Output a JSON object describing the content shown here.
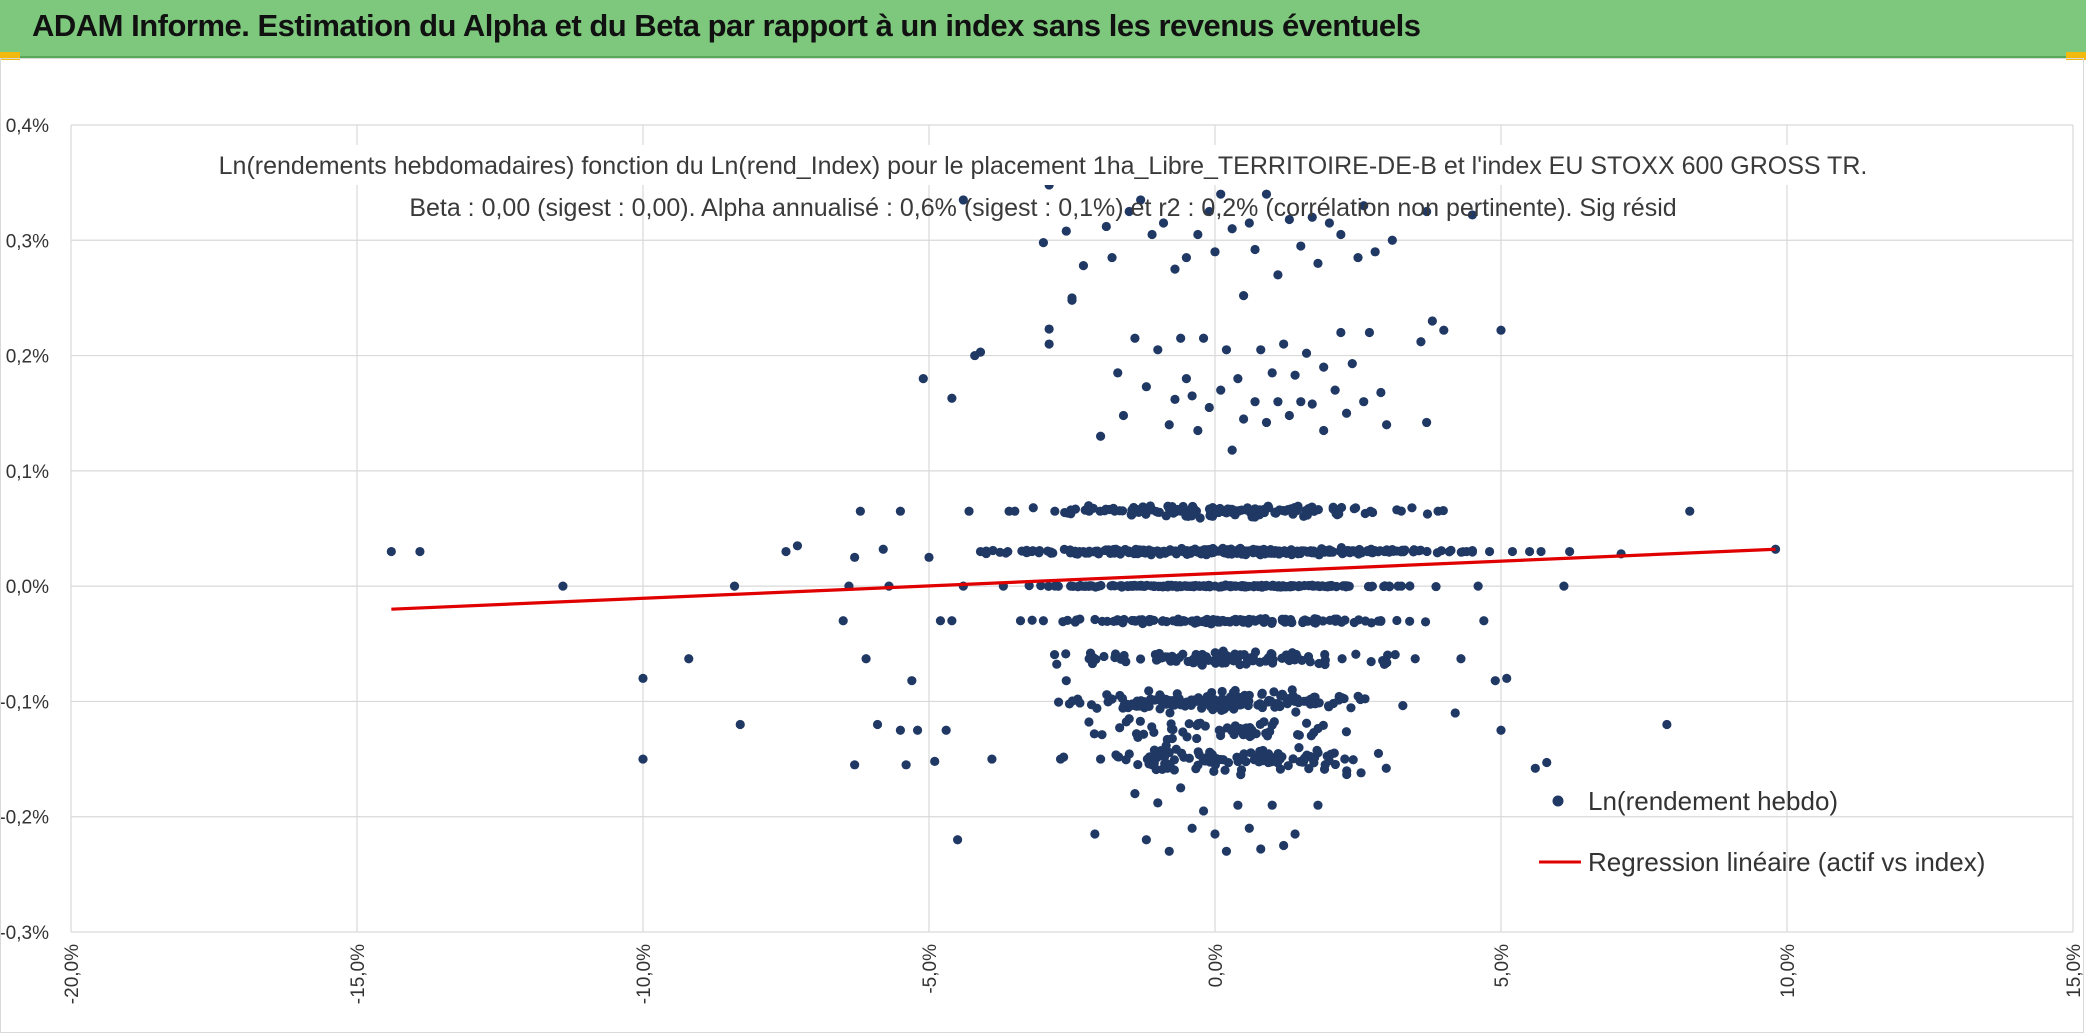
{
  "header": {
    "title": "ADAM Informe. Estimation du Alpha et du Beta par rapport à un index sans les revenus éventuels"
  },
  "colors": {
    "banner": "#7dc87d",
    "points": "#203864",
    "regression": "#e00000",
    "grid": "#d9d9d9"
  },
  "chart_data": {
    "type": "scatter",
    "title": "Ln(rendements hebdomadaires) fonction du Ln(rend_Index) pour le placement 1ha_Libre_TERRITOIRE-DE-B et l'index EU STOXX 600 GROSS TR.",
    "subtitle": "Beta : 0,00 (sigest : 0,00). Alpha annualisé : 0,6% (sigest : 0,1%) et r2 : 0,2% (corrélation non pertinente). Sig résid",
    "xlabel": "",
    "ylabel": "",
    "xlim": [
      -0.2,
      0.15
    ],
    "ylim": [
      -0.003,
      0.004
    ],
    "x_ticks": [
      {
        "value": -0.2,
        "label": "-20,0%"
      },
      {
        "value": -0.15,
        "label": "-15,0%"
      },
      {
        "value": -0.1,
        "label": "-10,0%"
      },
      {
        "value": -0.05,
        "label": "-5,0%"
      },
      {
        "value": 0.0,
        "label": "0,0%"
      },
      {
        "value": 0.05,
        "label": "5,0%"
      },
      {
        "value": 0.1,
        "label": "10,0%"
      },
      {
        "value": 0.15,
        "label": "15,0%"
      }
    ],
    "y_ticks": [
      {
        "value": 0.004,
        "label": "0,4%"
      },
      {
        "value": 0.003,
        "label": "0,3%"
      },
      {
        "value": 0.002,
        "label": "0,2%"
      },
      {
        "value": 0.001,
        "label": "0,1%"
      },
      {
        "value": 0.0,
        "label": "0,0%"
      },
      {
        "value": -0.001,
        "label": "-0,1%"
      },
      {
        "value": -0.002,
        "label": "-0,2%"
      },
      {
        "value": -0.003,
        "label": "-0,3%"
      }
    ],
    "grid": true,
    "legend_position": "bottom-right",
    "series": [
      {
        "name": "Ln(rendement hebdo)",
        "kind": "scatter",
        "points": [
          [
            -0.144,
            0.0003
          ],
          [
            -0.139,
            0.0003
          ],
          [
            -0.114,
            0.0
          ],
          [
            -0.1,
            -0.0008
          ],
          [
            -0.1,
            -0.0015
          ],
          [
            -0.092,
            -0.00063
          ],
          [
            -0.084,
            0.0
          ],
          [
            -0.083,
            -0.0012
          ],
          [
            -0.075,
            0.0003
          ],
          [
            -0.073,
            0.00035
          ],
          [
            -0.065,
            -0.0003
          ],
          [
            -0.064,
            0.0
          ],
          [
            -0.063,
            0.00025
          ],
          [
            -0.063,
            -0.00155
          ],
          [
            -0.062,
            0.00065
          ],
          [
            -0.061,
            -0.00063
          ],
          [
            -0.059,
            -0.0012
          ],
          [
            -0.058,
            0.00032
          ],
          [
            -0.057,
            0.0
          ],
          [
            -0.055,
            0.00065
          ],
          [
            -0.055,
            -0.00125
          ],
          [
            -0.054,
            -0.00155
          ],
          [
            -0.053,
            -0.00082
          ],
          [
            -0.052,
            -0.00125
          ],
          [
            -0.051,
            0.0018
          ],
          [
            -0.05,
            0.00025
          ],
          [
            -0.049,
            -0.00152
          ],
          [
            -0.047,
            -0.00125
          ],
          [
            -0.046,
            -0.0003
          ],
          [
            -0.045,
            -0.0022
          ],
          [
            -0.044,
            0.0
          ],
          [
            -0.048,
            -0.0003
          ],
          [
            -0.043,
            0.00065
          ],
          [
            -0.04,
            0.0003
          ],
          [
            -0.037,
            0.0
          ],
          [
            -0.035,
            0.00065
          ],
          [
            -0.032,
            0.0003
          ],
          [
            -0.03,
            -0.0003
          ],
          [
            -0.044,
            0.00335
          ],
          [
            -0.046,
            0.00163
          ],
          [
            -0.042,
            0.002
          ],
          [
            -0.041,
            0.00203
          ],
          [
            -0.041,
            0.0003
          ],
          [
            -0.039,
            -0.0015
          ],
          [
            -0.036,
            0.00065
          ],
          [
            -0.034,
            -0.0003
          ],
          [
            -0.031,
            0.0003
          ],
          [
            -0.03,
            0.00298
          ],
          [
            -0.029,
            0.00348
          ],
          [
            -0.029,
            0.00223
          ],
          [
            -0.029,
            0.0021
          ],
          [
            -0.028,
            0.00065
          ],
          [
            -0.027,
            -0.0015
          ],
          [
            -0.026,
            0.00308
          ],
          [
            -0.026,
            -0.00082
          ],
          [
            -0.025,
            0.0025
          ],
          [
            -0.025,
            0.00248
          ],
          [
            -0.024,
            -0.00098
          ],
          [
            -0.023,
            0.0003
          ],
          [
            -0.023,
            0.00278
          ],
          [
            -0.022,
            0.00065
          ],
          [
            -0.022,
            -0.00063
          ],
          [
            -0.021,
            -0.00215
          ],
          [
            -0.02,
            0.0013
          ],
          [
            -0.02,
            -0.0015
          ],
          [
            -0.019,
            0.00312
          ],
          [
            -0.018,
            0.00285
          ],
          [
            -0.018,
            -0.00098
          ],
          [
            -0.017,
            0.00185
          ],
          [
            -0.016,
            0.00148
          ],
          [
            -0.016,
            -0.0003
          ],
          [
            -0.015,
            0.00325
          ],
          [
            -0.015,
            -0.00115
          ],
          [
            -0.014,
            0.00215
          ],
          [
            -0.014,
            -0.0018
          ],
          [
            -0.013,
            0.00335
          ],
          [
            -0.013,
            0.0
          ],
          [
            -0.012,
            0.00173
          ],
          [
            -0.012,
            -0.0022
          ],
          [
            -0.011,
            0.00305
          ],
          [
            -0.011,
            -0.00155
          ],
          [
            -0.01,
            0.00205
          ],
          [
            -0.01,
            -0.00188
          ],
          [
            -0.009,
            0.00315
          ],
          [
            -0.009,
            -0.00102
          ],
          [
            -0.008,
            0.0014
          ],
          [
            -0.008,
            -0.0023
          ],
          [
            -0.007,
            0.00275
          ],
          [
            -0.007,
            0.00162
          ],
          [
            -0.006,
            0.00215
          ],
          [
            -0.006,
            -0.00175
          ],
          [
            -0.005,
            0.00285
          ],
          [
            -0.005,
            0.0018
          ],
          [
            -0.004,
            0.00165
          ],
          [
            -0.004,
            -0.0021
          ],
          [
            -0.003,
            0.00305
          ],
          [
            -0.003,
            0.00135
          ],
          [
            -0.002,
            0.00215
          ],
          [
            -0.002,
            -0.00195
          ],
          [
            -0.001,
            0.00325
          ],
          [
            -0.001,
            0.00155
          ],
          [
            0.0,
            0.0029
          ],
          [
            0.0,
            -0.00215
          ],
          [
            0.001,
            0.0034
          ],
          [
            0.001,
            0.0017
          ],
          [
            0.002,
            0.00205
          ],
          [
            0.002,
            -0.0023
          ],
          [
            0.003,
            0.0031
          ],
          [
            0.003,
            0.00118
          ],
          [
            0.004,
            0.0018
          ],
          [
            0.004,
            -0.0019
          ],
          [
            0.005,
            0.00252
          ],
          [
            0.005,
            0.00145
          ],
          [
            0.006,
            0.00315
          ],
          [
            0.006,
            -0.0021
          ],
          [
            0.007,
            0.00292
          ],
          [
            0.007,
            0.0016
          ],
          [
            0.008,
            0.00205
          ],
          [
            0.008,
            -0.00228
          ],
          [
            0.009,
            0.0034
          ],
          [
            0.009,
            0.00142
          ],
          [
            0.01,
            0.00185
          ],
          [
            0.01,
            -0.0019
          ],
          [
            0.011,
            0.0027
          ],
          [
            0.011,
            0.0016
          ],
          [
            0.012,
            0.0021
          ],
          [
            0.012,
            -0.00225
          ],
          [
            0.013,
            0.00318
          ],
          [
            0.013,
            0.00148
          ],
          [
            0.014,
            0.00183
          ],
          [
            0.014,
            -0.00215
          ],
          [
            0.015,
            0.00295
          ],
          [
            0.015,
            0.0016
          ],
          [
            0.016,
            0.00202
          ],
          [
            0.017,
            0.0032
          ],
          [
            0.017,
            0.00158
          ],
          [
            0.018,
            0.0028
          ],
          [
            0.018,
            -0.0019
          ],
          [
            0.019,
            0.0019
          ],
          [
            0.019,
            0.00135
          ],
          [
            0.02,
            0.00315
          ],
          [
            0.021,
            0.0017
          ],
          [
            0.022,
            0.0022
          ],
          [
            0.022,
            0.00305
          ],
          [
            0.023,
            0.0015
          ],
          [
            0.024,
            0.00193
          ],
          [
            0.025,
            0.00285
          ],
          [
            0.026,
            0.0033
          ],
          [
            0.026,
            0.0016
          ],
          [
            0.027,
            0.0022
          ],
          [
            0.028,
            0.0029
          ],
          [
            0.029,
            0.00168
          ],
          [
            0.03,
            0.0014
          ],
          [
            0.031,
            0.003
          ],
          [
            0.032,
            0.0
          ],
          [
            0.033,
            0.0003
          ],
          [
            0.035,
            -0.00063
          ],
          [
            0.036,
            0.00212
          ],
          [
            0.037,
            0.00325
          ],
          [
            0.037,
            0.00142
          ],
          [
            0.038,
            0.0023
          ],
          [
            0.039,
            0.00065
          ],
          [
            0.04,
            0.00222
          ],
          [
            0.041,
            0.0003
          ],
          [
            0.042,
            -0.0011
          ],
          [
            0.043,
            -0.00063
          ],
          [
            0.044,
            0.0003
          ],
          [
            0.045,
            0.00322
          ],
          [
            0.046,
            0.0
          ],
          [
            0.047,
            -0.0003
          ],
          [
            0.048,
            0.0003
          ],
          [
            0.049,
            -0.00082
          ],
          [
            0.05,
            0.00222
          ],
          [
            0.05,
            -0.00125
          ],
          [
            0.051,
            -0.0008
          ],
          [
            0.052,
            0.0003
          ],
          [
            0.055,
            0.0003
          ],
          [
            0.056,
            -0.00158
          ],
          [
            0.057,
            0.0003
          ],
          [
            0.058,
            -0.00153
          ],
          [
            0.061,
            0.0
          ],
          [
            0.062,
            0.0003
          ],
          [
            0.071,
            0.00028
          ],
          [
            0.079,
            -0.0012
          ],
          [
            0.083,
            0.00065
          ],
          [
            0.098,
            0.00032
          ]
        ]
      },
      {
        "name": "Regression linéaire (actif vs index)",
        "kind": "line",
        "points": [
          [
            -0.144,
            -0.0002
          ],
          [
            0.098,
            0.00032
          ]
        ]
      }
    ]
  }
}
